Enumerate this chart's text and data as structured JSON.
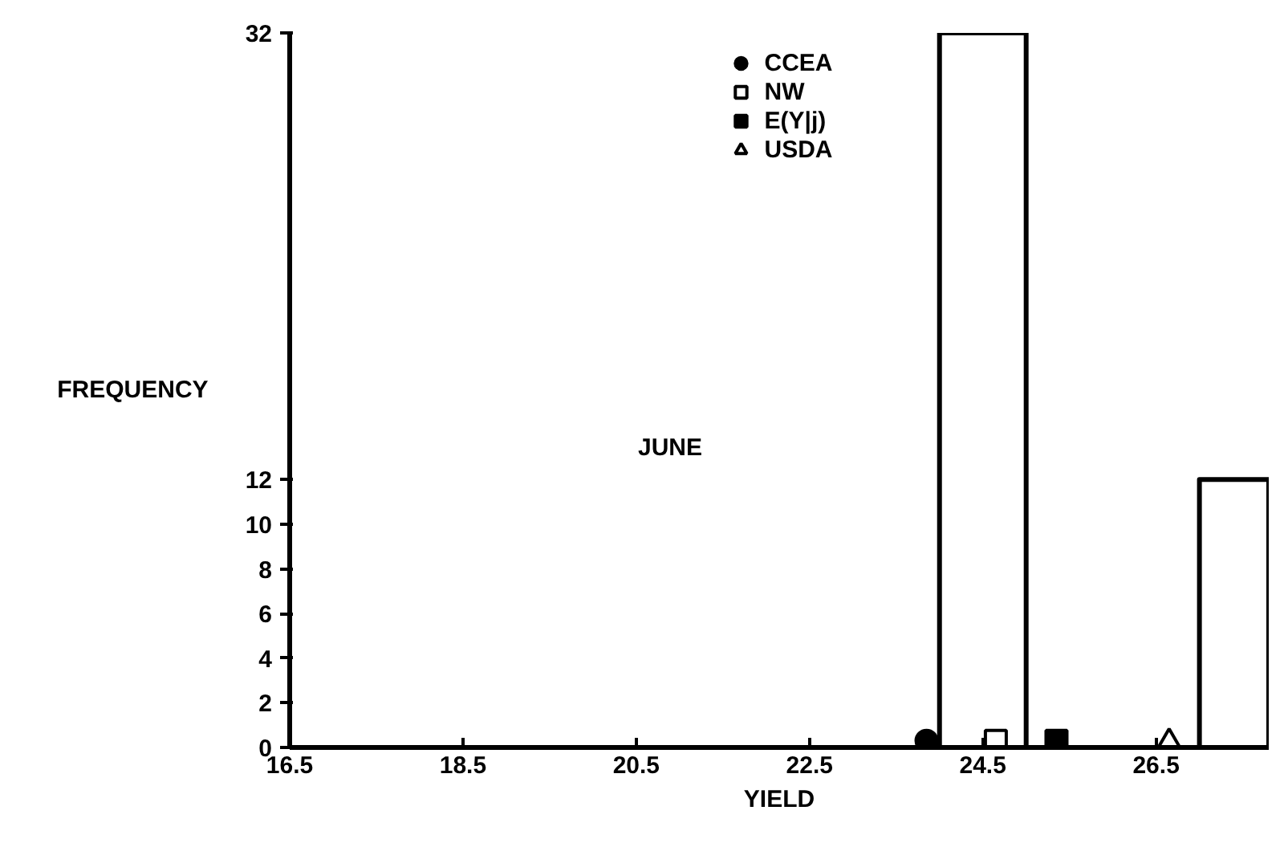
{
  "chart_data": {
    "type": "histogram",
    "xlabel": "YIELD",
    "ylabel": "FREQUENCY",
    "annotations": [
      "JUNE"
    ],
    "bins": [
      24,
      25,
      27,
      27.8
    ],
    "values": [
      32,
      0,
      12
    ],
    "color": "#000000",
    "series": [
      {
        "name": "CCEA",
        "type": "scatter",
        "marker": "circle",
        "color": "#000000",
        "x": [
          23.85
        ],
        "values": [
          0.3
        ]
      },
      {
        "name": "NW",
        "type": "scatter",
        "marker": "square",
        "color": "#ffffff",
        "x": [
          24.65
        ],
        "values": [
          0.3
        ]
      },
      {
        "name": "E(Y|j)",
        "type": "scatter",
        "marker": "square",
        "color": "#000000",
        "x": [
          25.35
        ],
        "values": [
          0.3
        ]
      },
      {
        "name": "USDA",
        "type": "scatter",
        "marker": "triangle",
        "color": "#ffffff",
        "x": [
          26.65
        ],
        "values": [
          0.3
        ]
      }
    ],
    "xlim": [
      16.5,
      27.8
    ],
    "ylim": [
      0,
      32
    ],
    "xticks": [
      16.5,
      18.5,
      20.5,
      22.5,
      24.5,
      26.5
    ],
    "yticks": [
      0,
      2,
      4,
      6,
      8,
      10,
      12,
      32
    ],
    "grid": false,
    "legend": "top"
  }
}
